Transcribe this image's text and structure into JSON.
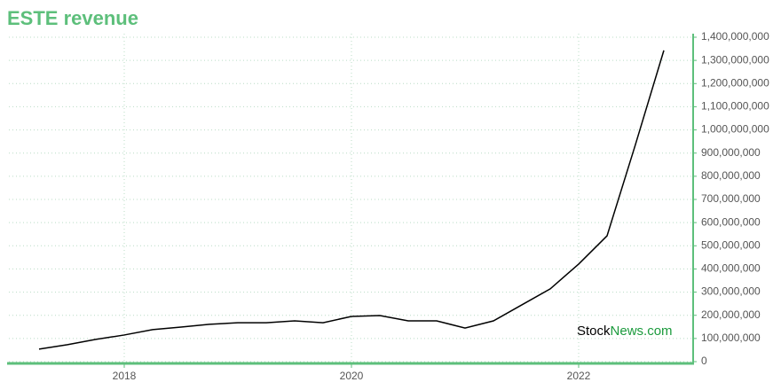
{
  "chart_data": {
    "type": "line",
    "title": "ESTE revenue",
    "x": [
      2017.25,
      2017.5,
      2017.75,
      2018,
      2018.25,
      2018.5,
      2018.75,
      2019,
      2019.25,
      2019.5,
      2019.75,
      2020,
      2020.25,
      2020.5,
      2020.75,
      2021,
      2021.25,
      2021.5,
      2021.75,
      2022,
      2022.25,
      2022.5,
      2022.75
    ],
    "series": [
      {
        "name": "ESTE revenue",
        "color": "#000000",
        "values": [
          54000000,
          73000000,
          96000000,
          115000000,
          138000000,
          149000000,
          161000000,
          168000000,
          168000000,
          176000000,
          168000000,
          195000000,
          199000000,
          176000000,
          176000000,
          145000000,
          176000000,
          245000000,
          314000000,
          421000000,
          543000000,
          937000000,
          1343000000
        ]
      }
    ],
    "xlim": [
      2017,
      2023
    ],
    "xticks": [
      2018,
      2020,
      2022
    ],
    "ylim": [
      0,
      1400000000
    ],
    "yticks": [
      0,
      {
        "value": 100000000,
        "label": "100,000,000"
      },
      {
        "value": 200000000,
        "label": "200,000,000"
      },
      {
        "value": 300000000,
        "label": "300,000,000"
      },
      {
        "value": 400000000,
        "label": "400,000,000"
      },
      {
        "value": 500000000,
        "label": "500,000,000"
      },
      {
        "value": 600000000,
        "label": "600,000,000"
      },
      {
        "value": 700000000,
        "label": "700,000,000"
      },
      {
        "value": 800000000,
        "label": "800,000,000"
      },
      {
        "value": 900000000,
        "label": "900,000,000"
      },
      {
        "value": 1000000000,
        "label": "1,000,000,000"
      },
      {
        "value": 1100000000,
        "label": "1,100,000,000"
      },
      {
        "value": 1200000000,
        "label": "1,200,000,000"
      },
      {
        "value": 1300000000,
        "label": "1,300,000,000"
      },
      {
        "value": 1400000000,
        "label": "1,400,000,000"
      }
    ],
    "grid": true,
    "axis_color": "#5dbf7b",
    "watermark": {
      "prefix": "Stock",
      "suffix": "News.com"
    }
  }
}
